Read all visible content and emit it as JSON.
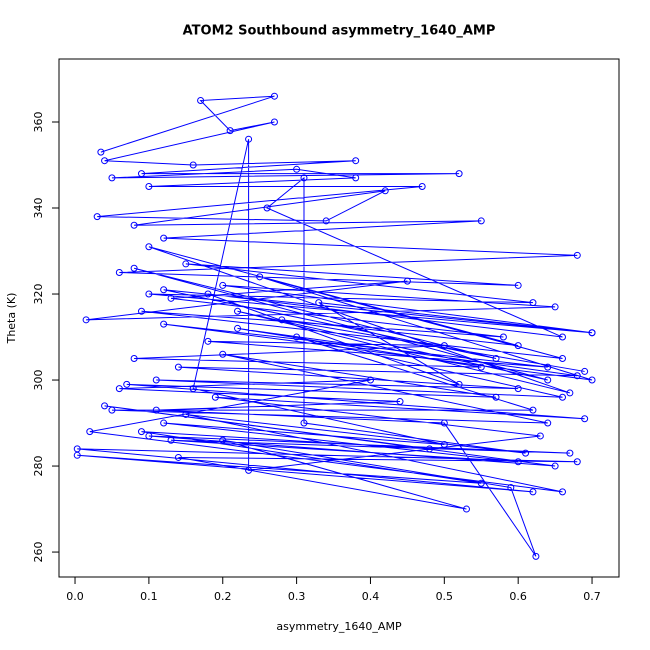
{
  "chart_data": {
    "type": "line",
    "marker": "circle",
    "title": "ATOM2 Southbound asymmetry_1640_AMP",
    "xlabel": "asymmetry_1640_AMP",
    "ylabel": "Theta (K)",
    "color": "#0000ff",
    "xlim": [
      -0.0217,
      0.7365
    ],
    "ylim": [
      254.2,
      374.65
    ],
    "xticks": [
      {
        "value": 0,
        "label": "0.0"
      },
      0.1,
      0.2,
      0.3,
      0.4,
      0.5,
      0.6,
      0.7
    ],
    "yticks": [
      260,
      280,
      300,
      320,
      340,
      360
    ],
    "x": [
      0.035,
      0.27,
      0.17,
      0.21,
      0.27,
      0.04,
      0.16,
      0.38,
      0.09,
      0.52,
      0.05,
      0.3,
      0.38,
      0.1,
      0.47,
      0.03,
      0.34,
      0.42,
      0.08,
      0.55,
      0.12,
      0.68,
      0.06,
      0.6,
      0.15,
      0.62,
      0.1,
      0.7,
      0.2,
      0.65,
      0.015,
      0.45,
      0.13,
      0.58,
      0.09,
      0.66,
      0.25,
      0.7,
      0.12,
      0.64,
      0.18,
      0.5,
      0.08,
      0.55,
      0.22,
      0.68,
      0.14,
      0.6,
      0.11,
      0.66,
      0.3,
      0.62,
      0.05,
      0.64,
      0.2,
      0.57,
      0.07,
      0.69,
      0.19,
      0.63,
      0.235,
      0.235,
      0.16,
      0.5,
      0.12,
      0.6,
      0.13,
      0.67,
      0.1,
      0.65,
      0.04,
      0.48,
      0.09,
      0.55,
      0.003,
      0.62,
      0.003,
      0.68,
      0.14,
      0.53,
      0.2,
      0.59,
      0.624,
      0.5,
      0.11,
      0.44,
      0.06,
      0.4,
      0.02,
      0.66,
      0.15,
      0.61,
      0.31,
      0.31,
      0.26,
      0.66,
      0.18,
      0.52,
      0.33,
      0.7,
      0.12,
      0.57,
      0.08,
      0.64,
      0.22,
      0.67,
      0.1,
      0.6,
      0.28,
      0.69
    ],
    "values": [
      353,
      366,
      365,
      358,
      360,
      351,
      350,
      351,
      348,
      348,
      347,
      349,
      347,
      345,
      345,
      338,
      337,
      344,
      336,
      337,
      333,
      329,
      325,
      322,
      327,
      318,
      320,
      311,
      322,
      317,
      314,
      323,
      319,
      310,
      316,
      305,
      324,
      300,
      313,
      303,
      309,
      308,
      305,
      303,
      312,
      301,
      303,
      298,
      300,
      296,
      310,
      293,
      293,
      290,
      306,
      296,
      299,
      291,
      296,
      287,
      279,
      356,
      298,
      285,
      290,
      281,
      286,
      283,
      287,
      280,
      294,
      284,
      288,
      276,
      282.5,
      274,
      284,
      281,
      282,
      270,
      286,
      275,
      259,
      290,
      293,
      295,
      298,
      300,
      288,
      274,
      292,
      283,
      290,
      347,
      340,
      310,
      320,
      299,
      318,
      311,
      321,
      305,
      326,
      300,
      316,
      297,
      331,
      308,
      314,
      302
    ]
  }
}
